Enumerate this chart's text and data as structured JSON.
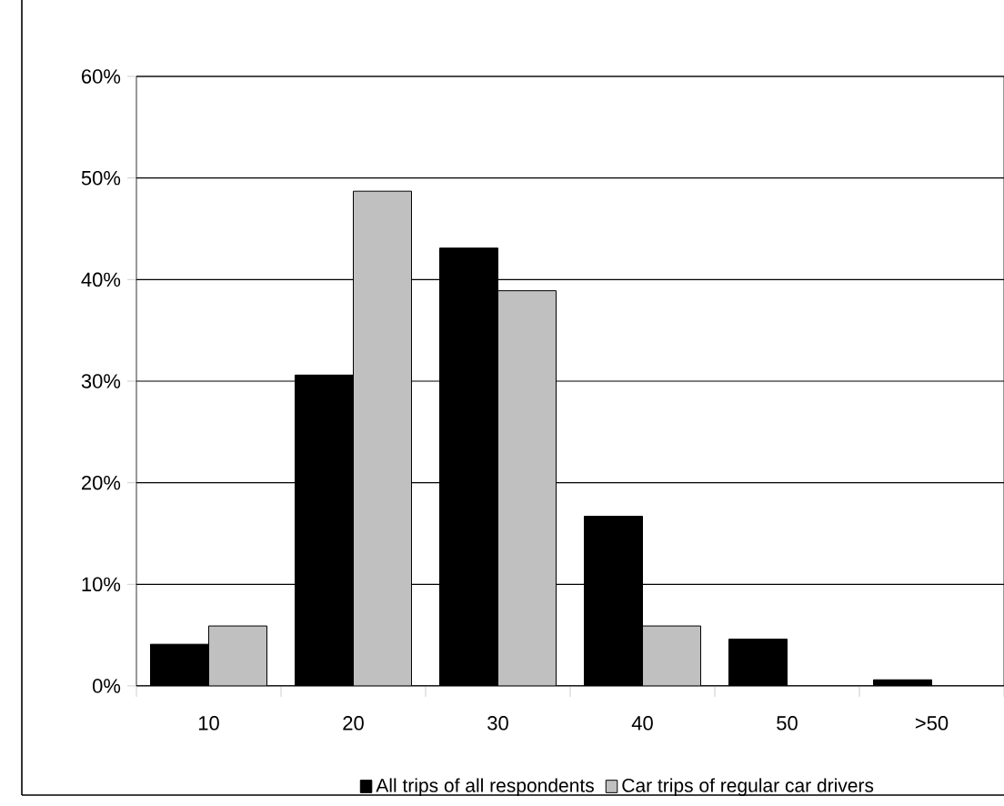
{
  "chart_data": {
    "type": "bar",
    "categories": [
      "10",
      "20",
      "30",
      "40",
      "50",
      ">50"
    ],
    "series": [
      {
        "name": "All trips of all respondents",
        "color": "#000000",
        "values": [
          4.1,
          30.6,
          43.1,
          16.7,
          4.6,
          0.6
        ]
      },
      {
        "name": "Car trips of regular car drivers",
        "color": "#c0c0c0",
        "values": [
          5.9,
          48.7,
          38.9,
          5.9,
          null,
          null
        ]
      }
    ],
    "ylim": [
      0,
      60
    ],
    "yticks": [
      {
        "value": 0,
        "label": "0%"
      },
      {
        "value": 10,
        "label": "10%"
      },
      {
        "value": 20,
        "label": "20%"
      },
      {
        "value": 30,
        "label": "30%"
      },
      {
        "value": 40,
        "label": "40%"
      },
      {
        "value": 50,
        "label": "50%"
      },
      {
        "value": 60,
        "label": "60%"
      }
    ],
    "grid": "y",
    "legend": "bottom"
  }
}
